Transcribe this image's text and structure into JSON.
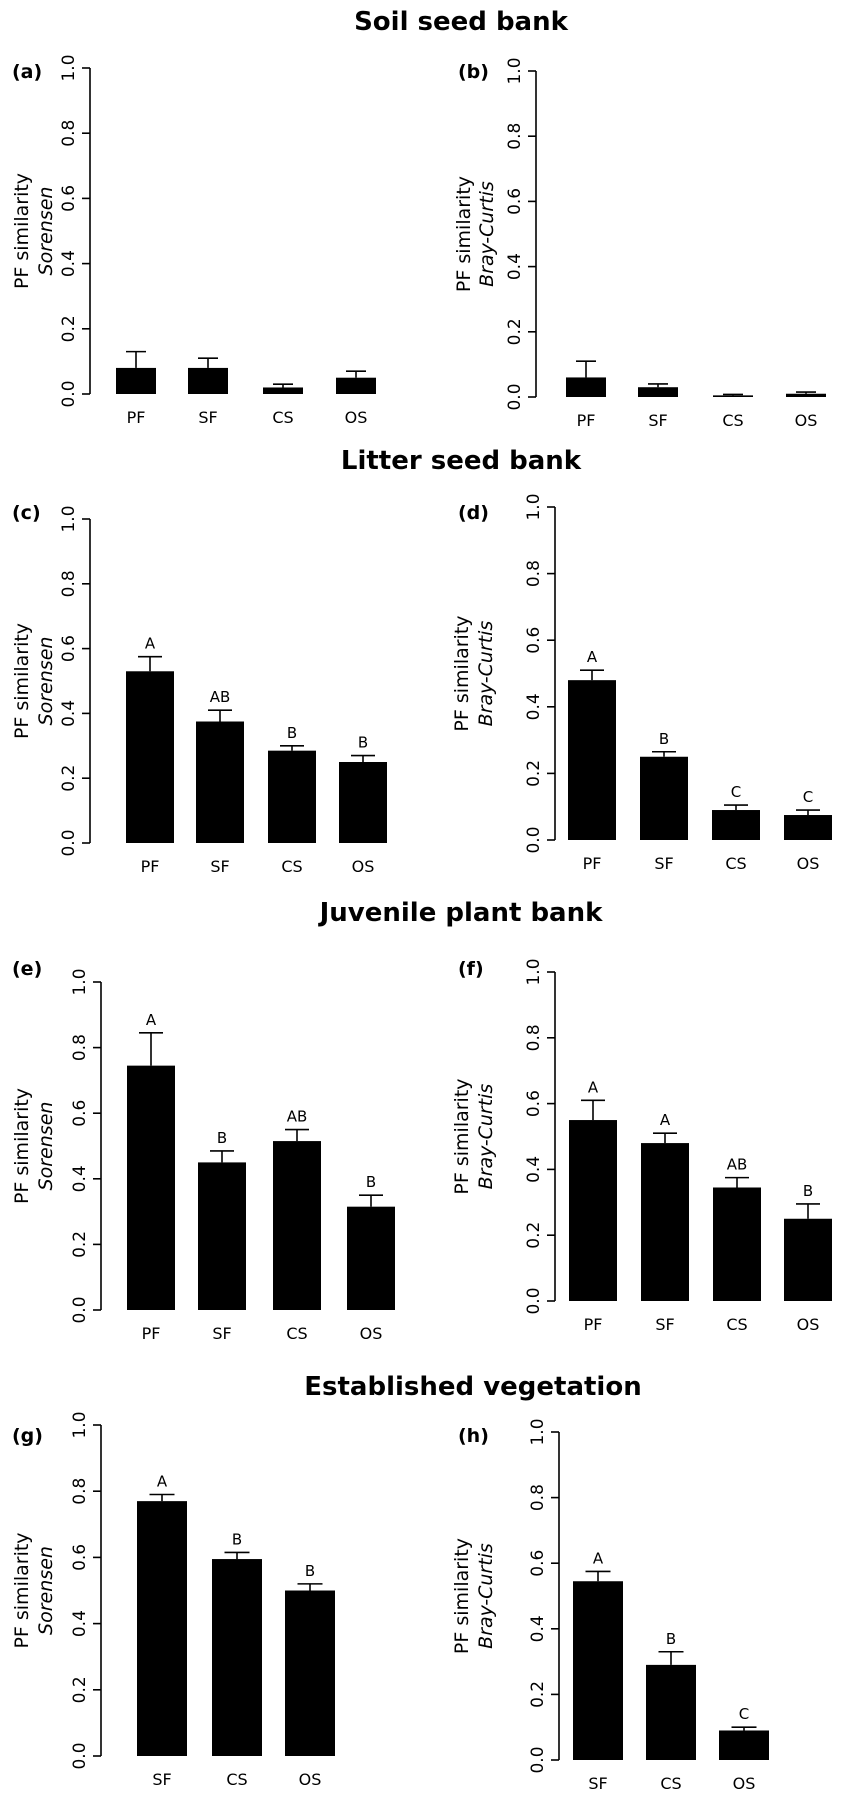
{
  "row_titles": [
    "Soil seed bank",
    "Litter seed bank",
    "Juvenile plant bank",
    "Established vegetation"
  ],
  "colors": {
    "bar": "#000000",
    "axis": "#000000",
    "background": "#ffffff"
  },
  "chart_data": [
    {
      "type": "bar",
      "panel": "(a)",
      "row_title": "Soil seed bank",
      "ylabel": "PF similarity",
      "ylabel_index": "Sorensen",
      "ylim": [
        0,
        1
      ],
      "yticks": [
        "0.0",
        "0.2",
        "0.4",
        "0.6",
        "0.8",
        "1.0"
      ],
      "categories": [
        "PF",
        "SF",
        "CS",
        "OS"
      ],
      "values": [
        0.08,
        0.08,
        0.02,
        0.05
      ],
      "errors": [
        0.05,
        0.03,
        0.01,
        0.02
      ],
      "letters": [
        "",
        "",
        "",
        ""
      ]
    },
    {
      "type": "bar",
      "panel": "(b)",
      "row_title": "Soil seed bank",
      "ylabel": "PF similarity",
      "ylabel_index": "Bray-Curtis",
      "ylim": [
        0,
        1
      ],
      "yticks": [
        "0.0",
        "0.2",
        "0.4",
        "0.6",
        "0.8",
        "1.0"
      ],
      "categories": [
        "PF",
        "SF",
        "CS",
        "OS"
      ],
      "values": [
        0.06,
        0.03,
        0.005,
        0.01
      ],
      "errors": [
        0.05,
        0.01,
        0.003,
        0.005
      ],
      "letters": [
        "",
        "",
        "",
        ""
      ]
    },
    {
      "type": "bar",
      "panel": "(c)",
      "row_title": "Litter seed bank",
      "ylabel": "PF similarity",
      "ylabel_index": "Sorensen",
      "ylim": [
        0,
        1
      ],
      "yticks": [
        "0.0",
        "0.2",
        "0.4",
        "0.6",
        "0.8",
        "1.0"
      ],
      "categories": [
        "PF",
        "SF",
        "CS",
        "OS"
      ],
      "values": [
        0.53,
        0.375,
        0.285,
        0.25
      ],
      "errors": [
        0.045,
        0.035,
        0.015,
        0.02
      ],
      "letters": [
        "A",
        "AB",
        "B",
        "B"
      ]
    },
    {
      "type": "bar",
      "panel": "(d)",
      "row_title": "Litter seed bank",
      "ylabel": "PF similarity",
      "ylabel_index": "Bray-Curtis",
      "ylim": [
        0,
        1
      ],
      "yticks": [
        "0.0",
        "0.2",
        "0.4",
        "0.6",
        "0.8",
        "1.0"
      ],
      "categories": [
        "PF",
        "SF",
        "CS",
        "OS"
      ],
      "values": [
        0.48,
        0.25,
        0.09,
        0.075
      ],
      "errors": [
        0.03,
        0.015,
        0.015,
        0.015
      ],
      "letters": [
        "A",
        "B",
        "C",
        "C"
      ]
    },
    {
      "type": "bar",
      "panel": "(e)",
      "row_title": "Juvenile plant bank",
      "ylabel": "PF similarity",
      "ylabel_index": "Sorensen",
      "ylim": [
        0,
        1
      ],
      "yticks": [
        "0.0",
        "0.2",
        "0.4",
        "0.6",
        "0.8",
        "1.0"
      ],
      "categories": [
        "PF",
        "SF",
        "CS",
        "OS"
      ],
      "values": [
        0.745,
        0.45,
        0.515,
        0.315
      ],
      "errors": [
        0.1,
        0.035,
        0.035,
        0.035
      ],
      "letters": [
        "A",
        "B",
        "AB",
        "B"
      ]
    },
    {
      "type": "bar",
      "panel": "(f)",
      "row_title": "Juvenile plant bank",
      "ylabel": "PF similarity",
      "ylabel_index": "Bray-Curtis",
      "ylim": [
        0,
        1
      ],
      "yticks": [
        "0.0",
        "0.2",
        "0.4",
        "0.6",
        "0.8",
        "1.0"
      ],
      "categories": [
        "PF",
        "SF",
        "CS",
        "OS"
      ],
      "values": [
        0.55,
        0.48,
        0.345,
        0.25
      ],
      "errors": [
        0.06,
        0.03,
        0.03,
        0.045
      ],
      "letters": [
        "A",
        "A",
        "AB",
        "B"
      ]
    },
    {
      "type": "bar",
      "panel": "(g)",
      "row_title": "Established vegetation",
      "ylabel": "PF similarity",
      "ylabel_index": "Sorensen",
      "ylim": [
        0,
        1
      ],
      "yticks": [
        "0.0",
        "0.2",
        "0.4",
        "0.6",
        "0.8",
        "1.0"
      ],
      "categories": [
        "SF",
        "CS",
        "OS"
      ],
      "values": [
        0.77,
        0.595,
        0.5
      ],
      "errors": [
        0.02,
        0.02,
        0.02
      ],
      "letters": [
        "A",
        "B",
        "B"
      ]
    },
    {
      "type": "bar",
      "panel": "(h)",
      "row_title": "Established vegetation",
      "ylabel": "PF similarity",
      "ylabel_index": "Bray-Curtis",
      "ylim": [
        0,
        1
      ],
      "yticks": [
        "0.0",
        "0.2",
        "0.4",
        "0.6",
        "0.8",
        "1.0"
      ],
      "categories": [
        "SF",
        "CS",
        "OS"
      ],
      "values": [
        0.545,
        0.29,
        0.09
      ],
      "errors": [
        0.03,
        0.04,
        0.01
      ],
      "letters": [
        "A",
        "B",
        "C"
      ]
    }
  ]
}
